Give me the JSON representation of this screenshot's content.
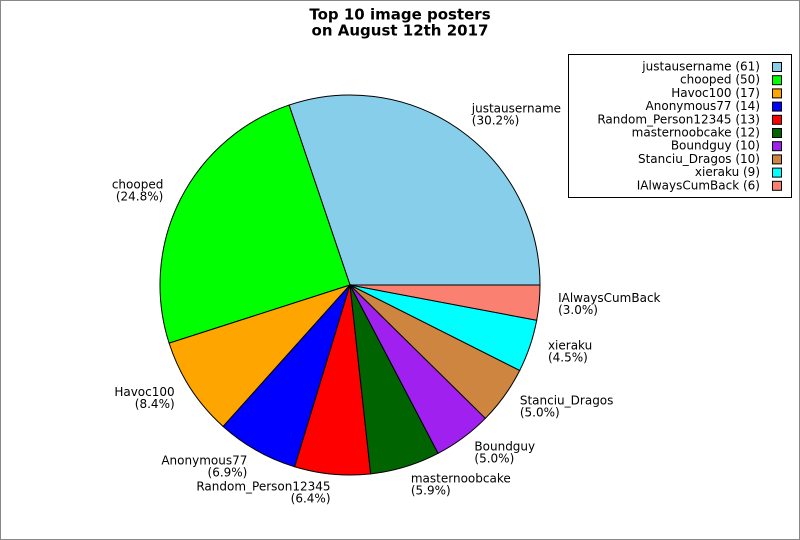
{
  "chart_data": {
    "type": "pie",
    "title": [
      "Top 10 image posters",
      "on August 12th 2017"
    ],
    "categories": [
      "justausername",
      "chooped",
      "Havoc100",
      "Anonymous77",
      "Random_Person12345",
      "masternoobcake",
      "Boundguy",
      "Stanciu_Dragos",
      "xieraku",
      "IAlwaysCumBack"
    ],
    "values": [
      61,
      50,
      17,
      14,
      13,
      12,
      10,
      10,
      9,
      6
    ],
    "value_labels": [
      "(30.2%)",
      "(24.8%)",
      "(8.4%)",
      "(6.9%)",
      "(6.4%)",
      "(5.9%)",
      "(5.0%)",
      "(5.0%)",
      "(4.5%)",
      "(3.0%)"
    ],
    "legend_labels": [
      "justausername (61)",
      "chooped (50)",
      "Havoc100 (17)",
      "Anonymous77 (14)",
      "Random_Person12345 (13)",
      "masternoobcake (12)",
      "Boundguy (10)",
      "Stanciu_Dragos (10)",
      "xieraku (9)",
      "IAlwaysCumBack (6)"
    ],
    "colors": [
      "#87ceeb",
      "#00ff00",
      "#ffa500",
      "#0000ff",
      "#ff0000",
      "#006400",
      "#a020f0",
      "#cd853f",
      "#00ffff",
      "#fa8072"
    ],
    "legend": "upper right"
  }
}
